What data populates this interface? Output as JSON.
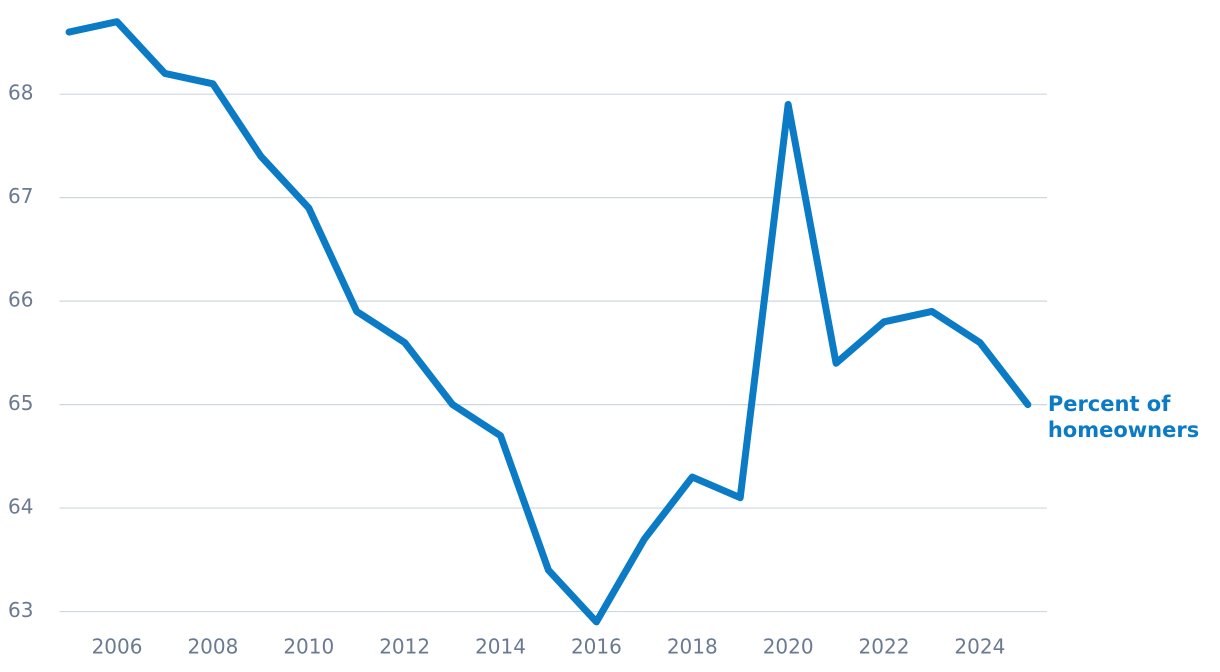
{
  "chart_data": {
    "type": "line",
    "x": [
      2005,
      2006,
      2007,
      2008,
      2009,
      2010,
      2011,
      2012,
      2013,
      2014,
      2015,
      2016,
      2017,
      2018,
      2019,
      2020,
      2021,
      2022,
      2023,
      2024,
      2025
    ],
    "series": [
      {
        "name": "Percent of homeowners",
        "color": "#0a7bc4",
        "values": [
          68.6,
          68.7,
          68.2,
          68.1,
          67.4,
          66.9,
          65.9,
          65.6,
          65.0,
          64.7,
          63.4,
          62.9,
          63.7,
          64.3,
          64.1,
          67.9,
          65.4,
          65.8,
          65.9,
          65.6,
          65.0
        ]
      }
    ],
    "xlim": [
      2004.8,
      2025.4
    ],
    "xticks": [
      2006,
      2008,
      2010,
      2012,
      2014,
      2016,
      2018,
      2020,
      2022,
      2024
    ],
    "ylim": [
      62.87,
      68.91
    ],
    "yticks": [
      63,
      64,
      65,
      66,
      67,
      68
    ],
    "grid": true
  }
}
